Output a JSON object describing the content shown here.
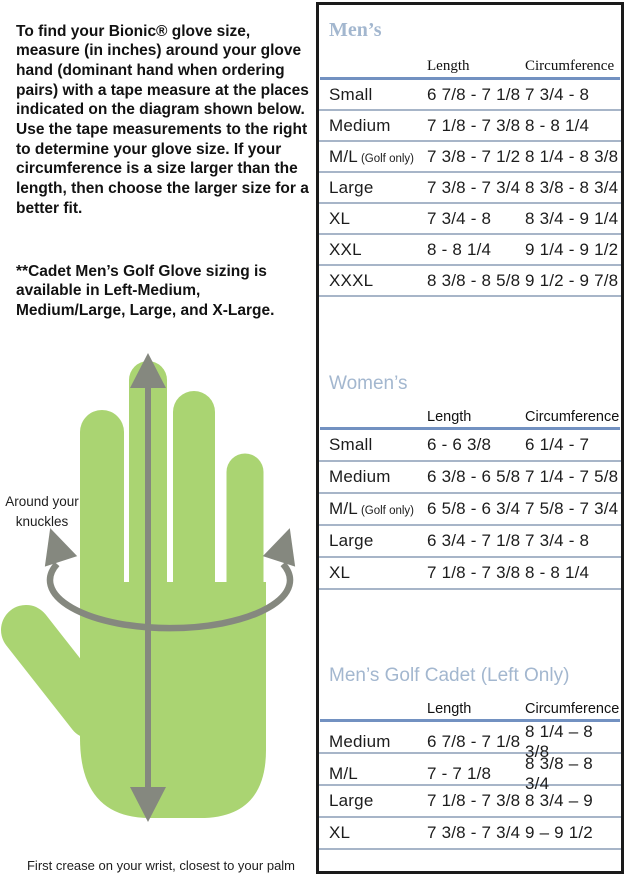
{
  "intro": {
    "paragraph1": "To find your Bionic® glove size, measure (in inches) around your glove hand (dominant hand when ordering pairs) with a tape measure at the places indicated on the diagram shown below. Use the tape measurements to the right to determine your glove size. If your circumference is a size larger than the length, then choose the larger size for a better fit.",
    "paragraph2": "**Cadet Men’s Golf Glove sizing is available in Left-Medium, Medium/Large, Large, and X-Large."
  },
  "diagram": {
    "knuckles_label": "Around your knuckles",
    "wrist_label": "First crease on your wrist, closest to your palm"
  },
  "size_chart": {
    "columns": {
      "length": "Length",
      "circumference": "Circumference"
    },
    "tables": [
      {
        "title": "Men’s",
        "rows": [
          {
            "label": "Small",
            "note": "",
            "length": "6 7/8 - 7 1/8",
            "circumference": "7 3/4 - 8"
          },
          {
            "label": "Medium",
            "note": "",
            "length": "7 1/8 - 7 3/8",
            "circumference": "8 - 8 1/4"
          },
          {
            "label": "M/L",
            "note": "(Golf only)",
            "length": "7 3/8 - 7 1/2",
            "circumference": "8 1/4 - 8 3/8"
          },
          {
            "label": "Large",
            "note": "",
            "length": "7 3/8 - 7 3/4",
            "circumference": "8 3/8 - 8 3/4"
          },
          {
            "label": "XL",
            "note": "",
            "length": "7 3/4 - 8",
            "circumference": "8 3/4 - 9 1/4"
          },
          {
            "label": "XXL",
            "note": "",
            "length": "8 - 8 1/4",
            "circumference": "9 1/4 - 9 1/2"
          },
          {
            "label": "XXXL",
            "note": "",
            "length": "8 3/8 - 8 5/8",
            "circumference": "9 1/2 - 9 7/8"
          }
        ]
      },
      {
        "title": "Women’s",
        "rows": [
          {
            "label": "Small",
            "note": "",
            "length": "6 - 6 3/8",
            "circumference": "6 1/4 - 7"
          },
          {
            "label": "Medium",
            "note": "",
            "length": "6 3/8 - 6 5/8",
            "circumference": "7 1/4 - 7 5/8"
          },
          {
            "label": "M/L",
            "note": "(Golf only)",
            "length": "6 5/8 - 6 3/4",
            "circumference": "7 5/8 - 7 3/4"
          },
          {
            "label": "Large",
            "note": "",
            "length": "6 3/4 - 7 1/8",
            "circumference": "7 3/4 - 8"
          },
          {
            "label": "XL",
            "note": "",
            "length": "7 1/8 - 7 3/8",
            "circumference": "8 - 8 1/4"
          }
        ]
      },
      {
        "title": "Men’s Golf Cadet (Left Only)",
        "rows": [
          {
            "label": "Medium",
            "note": "",
            "length": "6 7/8 - 7 1/8",
            "circumference": "8 1/4 – 8 3/8"
          },
          {
            "label": "M/L",
            "note": "",
            "length": "7 - 7 1/8",
            "circumference": "8 3/8 – 8 3/4"
          },
          {
            "label": "Large",
            "note": "",
            "length": "7 1/8 - 7 3/8",
            "circumference": "8 3/4 – 9"
          },
          {
            "label": "XL",
            "note": "",
            "length": "7 3/8 - 7 3/4",
            "circumference": "9 – 9 1/2"
          }
        ]
      }
    ]
  },
  "colors": {
    "heading_blue": "#a3b7cf",
    "rule_blue": "#7291c1",
    "row_rule": "#a7b5c8",
    "panel_border": "#1a1a1a",
    "hand_green": "#aad472",
    "arrow_gray": "#85887f"
  }
}
